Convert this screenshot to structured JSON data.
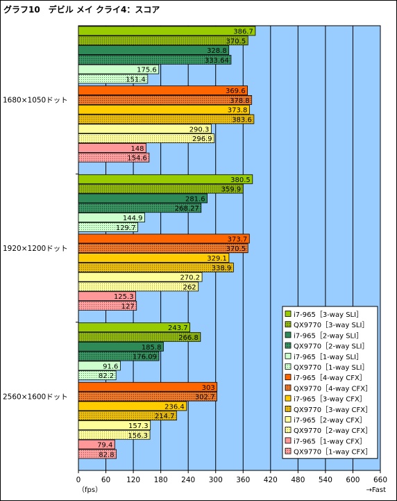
{
  "chart_data": {
    "type": "bar",
    "orientation": "horizontal",
    "title": "グラフ10　デビル メイ クライ4：スコア",
    "xlabel": "（fps）",
    "xlabel_right": "→Fast",
    "xlim": [
      0,
      660
    ],
    "xticks": [
      "0",
      "60",
      "120",
      "180",
      "240",
      "300",
      "360",
      "420",
      "480",
      "540",
      "600",
      "660"
    ],
    "grid": true,
    "legend_position": "bottom-right",
    "plot_background": "#99ccff",
    "categories": [
      "1680×1050ドット",
      "1920×1200ドット",
      "2560×1600ドット"
    ],
    "series": [
      {
        "name": "i7-965［3-way SLI］",
        "color": "#99cc00",
        "hatched": false,
        "values": [
          386.7,
          380.5,
          243.7
        ]
      },
      {
        "name": "QX9770［3-way SLI］",
        "color": "#88b000",
        "hatched": true,
        "values": [
          370.5,
          359.9,
          266.8
        ]
      },
      {
        "name": "i7-965［2-way SLI］",
        "color": "#2e8b57",
        "hatched": false,
        "values": [
          328.8,
          281.6,
          185.8
        ]
      },
      {
        "name": "QX9770［2-way SLI］",
        "color": "#2e8b57",
        "hatched": true,
        "values": [
          333.64,
          268.27,
          176.09
        ]
      },
      {
        "name": "i7-965［1-way SLI］",
        "color": "#ccffcc",
        "hatched": false,
        "values": [
          175.6,
          144.9,
          91.6
        ]
      },
      {
        "name": "QX9770［1-way SLI］",
        "color": "#ccffcc",
        "hatched": true,
        "values": [
          151.4,
          129.7,
          82.2
        ]
      },
      {
        "name": "i7-965［4-way CFX］",
        "color": "#ff6600",
        "hatched": false,
        "values": [
          369.6,
          373.7,
          303.0
        ]
      },
      {
        "name": "QX9770［4-way CFX］",
        "color": "#e8701e",
        "hatched": true,
        "values": [
          378.8,
          370.5,
          302.7
        ]
      },
      {
        "name": "i7-965［3-way CFX］",
        "color": "#ffcc00",
        "hatched": false,
        "values": [
          373.8,
          329.1,
          236.4
        ]
      },
      {
        "name": "QX9770［3-way CFX］",
        "color": "#e6b800",
        "hatched": true,
        "values": [
          383.6,
          338.9,
          214.7
        ]
      },
      {
        "name": "i7-965［2-way CFX］",
        "color": "#ffff99",
        "hatched": false,
        "values": [
          290.3,
          270.2,
          157.3
        ]
      },
      {
        "name": "QX9770［2-way CFX］",
        "color": "#ffff99",
        "hatched": true,
        "values": [
          296.9,
          262.0,
          156.3
        ]
      },
      {
        "name": "i7-965［1-way CFX］",
        "color": "#ff9999",
        "hatched": false,
        "values": [
          148.0,
          125.3,
          79.4
        ]
      },
      {
        "name": "QX9770［1-way CFX］",
        "color": "#ff9999",
        "hatched": true,
        "values": [
          154.6,
          127.0,
          82.8
        ]
      }
    ]
  }
}
